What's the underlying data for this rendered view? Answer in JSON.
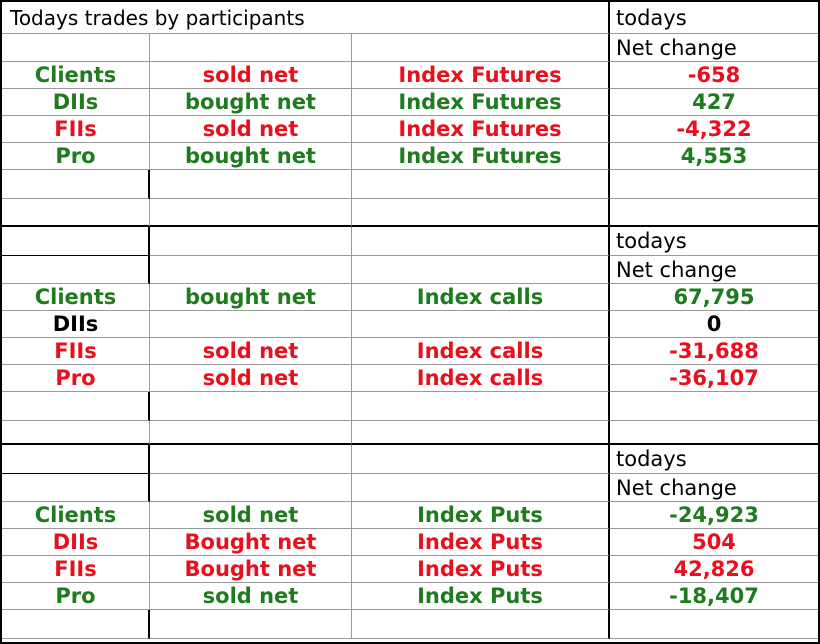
{
  "title": "Todays trades by participants",
  "header_line1": "todays",
  "header_line2": "Net change",
  "sections": [
    {
      "rows": [
        {
          "participant": "Clients",
          "action": "sold net",
          "instrument": "Index Futures",
          "value": "-658",
          "pc": "g",
          "ac": "r",
          "ic": "r",
          "vc": "r"
        },
        {
          "participant": "DIIs",
          "action": "bought net",
          "instrument": "Index Futures",
          "value": "427",
          "pc": "g",
          "ac": "g",
          "ic": "g",
          "vc": "g"
        },
        {
          "participant": "FIIs",
          "action": "sold net",
          "instrument": "Index Futures",
          "value": "-4,322",
          "pc": "r",
          "ac": "r",
          "ic": "r",
          "vc": "r"
        },
        {
          "participant": "Pro",
          "action": "bought net",
          "instrument": "Index Futures",
          "value": "4,553",
          "pc": "g",
          "ac": "g",
          "ic": "g",
          "vc": "g"
        }
      ]
    },
    {
      "rows": [
        {
          "participant": "Clients",
          "action": "bought net",
          "instrument": "Index calls",
          "value": "67,795",
          "pc": "g",
          "ac": "g",
          "ic": "g",
          "vc": "g"
        },
        {
          "participant": "DIIs",
          "action": "",
          "instrument": "",
          "value": "0",
          "pc": "k",
          "ac": "k",
          "ic": "k",
          "vc": "k"
        },
        {
          "participant": "FIIs",
          "action": "sold net",
          "instrument": "Index calls",
          "value": "-31,688",
          "pc": "r",
          "ac": "r",
          "ic": "r",
          "vc": "r"
        },
        {
          "participant": "Pro",
          "action": "sold net",
          "instrument": "Index calls",
          "value": "-36,107",
          "pc": "r",
          "ac": "r",
          "ic": "r",
          "vc": "r"
        }
      ]
    },
    {
      "rows": [
        {
          "participant": "Clients",
          "action": "sold net",
          "instrument": "Index Puts",
          "value": "-24,923",
          "pc": "g",
          "ac": "g",
          "ic": "g",
          "vc": "g"
        },
        {
          "participant": "DIIs",
          "action": "Bought net",
          "instrument": "Index Puts",
          "value": "504",
          "pc": "r",
          "ac": "r",
          "ic": "r",
          "vc": "r"
        },
        {
          "participant": "FIIs",
          "action": "Bought net",
          "instrument": "Index Puts",
          "value": "42,826",
          "pc": "r",
          "ac": "r",
          "ic": "r",
          "vc": "r"
        },
        {
          "participant": "Pro",
          "action": "sold net",
          "instrument": "Index Puts",
          "value": "-18,407",
          "pc": "g",
          "ac": "g",
          "ic": "g",
          "vc": "g"
        }
      ]
    }
  ],
  "colors": {
    "green": "#1e7b1e",
    "red": "#e8101c",
    "black": "#000000"
  }
}
